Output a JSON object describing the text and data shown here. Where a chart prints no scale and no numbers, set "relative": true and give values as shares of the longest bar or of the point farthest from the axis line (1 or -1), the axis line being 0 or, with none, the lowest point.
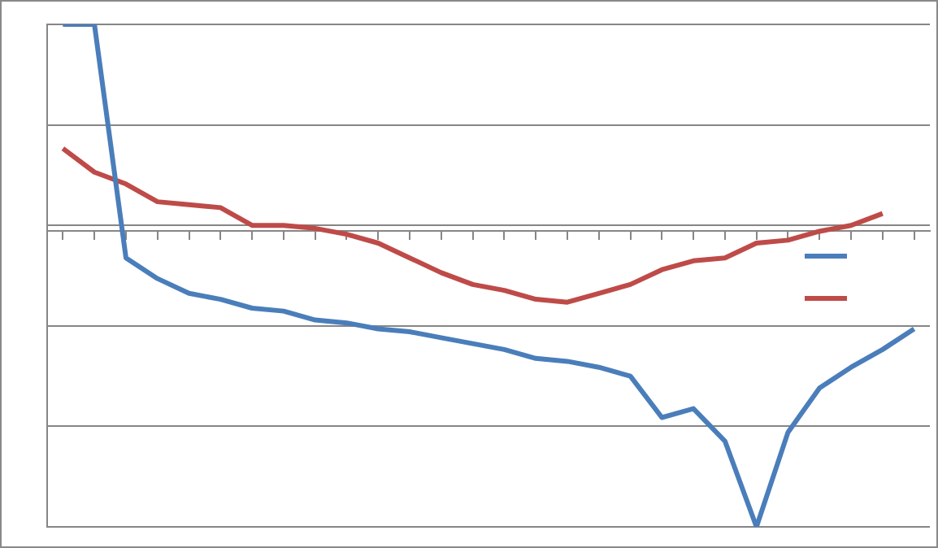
{
  "chart_data": {
    "type": "line",
    "relative": true,
    "grid": "y",
    "marker": "none",
    "line_style": "solid",
    "categories": [
      null,
      null,
      null,
      null,
      null,
      null,
      null,
      null,
      null,
      null,
      null,
      null,
      null,
      null,
      null,
      null,
      null,
      null,
      null,
      null,
      null,
      null,
      null,
      null,
      null,
      null,
      null,
      null
    ],
    "series": [
      {
        "color": "#4a7ebb",
        "values": [
          0.7,
          0.7,
          -0.09,
          -0.16,
          -0.21,
          -0.23,
          -0.26,
          -0.27,
          -0.3,
          -0.31,
          -0.33,
          -0.34,
          -0.36,
          -0.38,
          -0.4,
          -0.43,
          -0.44,
          -0.46,
          -0.49,
          -0.63,
          -0.6,
          -0.71,
          -1,
          -0.68,
          -0.53,
          -0.46,
          -0.4,
          -0.33
        ]
      },
      {
        "color": "#be4b48",
        "values": [
          0.28,
          0.2,
          0.16,
          0.1,
          0.09,
          0.08,
          0.02,
          0.02,
          0.01,
          -0.01,
          -0.04,
          -0.09,
          -0.14,
          -0.18,
          -0.2,
          -0.23,
          -0.24,
          -0.21,
          -0.18,
          -0.13,
          -0.1,
          -0.09,
          -0.04,
          -0.03,
          0,
          0.02,
          0.06,
          null
        ]
      }
    ]
  }
}
